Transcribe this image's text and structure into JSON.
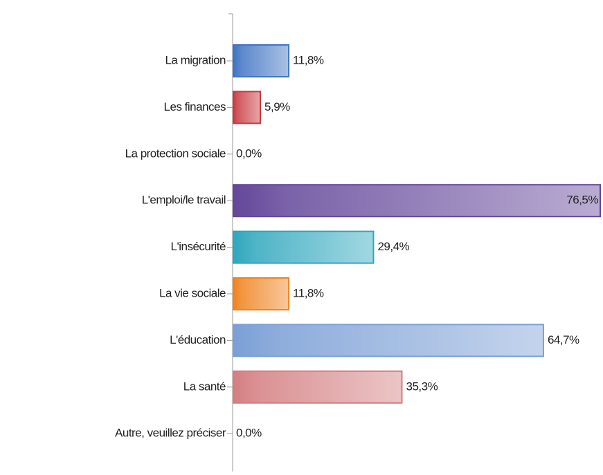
{
  "chart_data": {
    "type": "bar",
    "orientation": "horizontal",
    "categories": [
      "La migration",
      "Les finances",
      "La protection sociale",
      "L'emploi/le travail",
      "L'insécurité",
      "La vie sociale",
      "L'éducation",
      "La santé",
      "Autre, veuillez préciser"
    ],
    "values": [
      11.8,
      5.9,
      0,
      76.5,
      29.4,
      11.8,
      64.7,
      35.3,
      0
    ],
    "value_labels": [
      "11,8%",
      "5,9%",
      "0,0%",
      "76,5%",
      "29,4%",
      "11,8%",
      "64,7%",
      "35,3%",
      "0,0%"
    ],
    "colors": [
      "#3f74c4",
      "#c8393f",
      "#7aa83c",
      "#64479a",
      "#2ea7bd",
      "#f0831f",
      "#7b9fd6",
      "#d47e80",
      "#8a8a8a"
    ]
  }
}
